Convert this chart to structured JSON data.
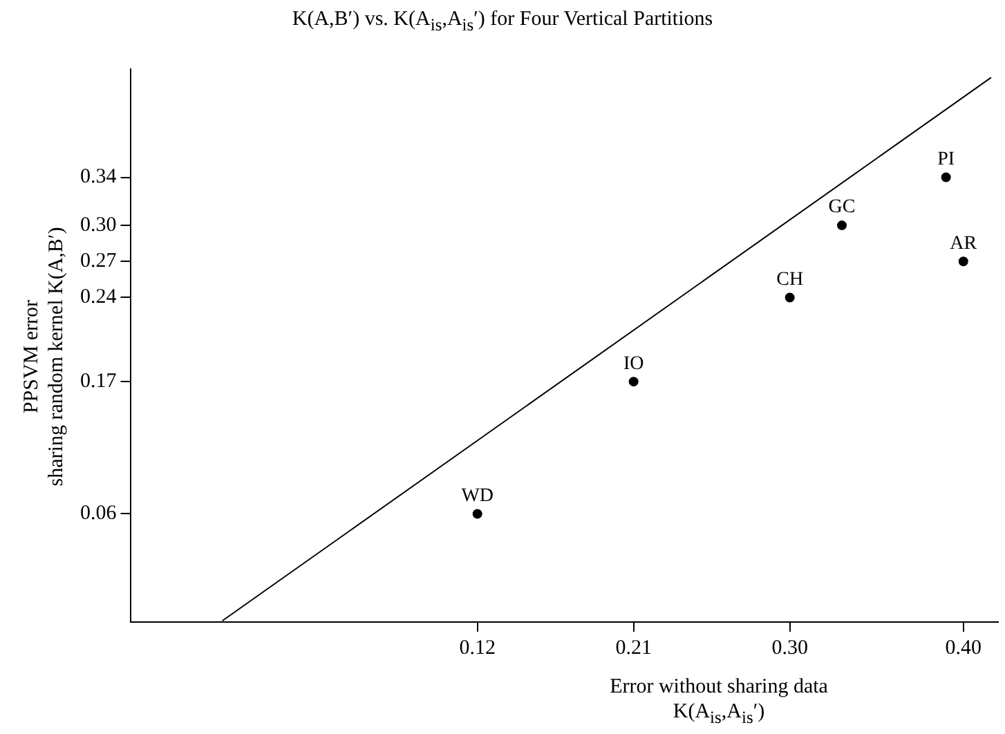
{
  "chart_data": {
    "type": "scatter",
    "title": "K(A,B′) vs. K(A$_{is}$,A$_{is}$′) for Four Vertical Partitions",
    "xlabel": "Error without sharing data\nK(A$_{is}$,A$_{is}$′)",
    "ylabel": "PPSVM error\nsharing random kernel K(A,B′)",
    "series": [
      {
        "color": "#000000",
        "marker": "circle",
        "x": [
          0.12,
          0.21,
          0.3,
          0.33,
          0.39,
          0.4
        ],
        "values": [
          0.06,
          0.17,
          0.24,
          0.3,
          0.34,
          0.27
        ]
      },
      {
        "type": "line",
        "color": "#000000",
        "x": [
          -0.027,
          0.416
        ],
        "values": [
          -0.029,
          0.423
        ]
      }
    ],
    "xlim": [
      -0.08,
      0.42
    ],
    "ylim": [
      -0.03,
      0.43
    ],
    "xticks": [
      0.12,
      0.21,
      {
        "value": 0.3,
        "label": "0.30"
      },
      {
        "value": 0.4,
        "label": "0.40"
      }
    ],
    "yticks": [
      0.06,
      0.17,
      0.24,
      0.27,
      {
        "value": 0.3,
        "label": "0.30"
      },
      0.34
    ],
    "annotations": [
      {
        "text": "WD",
        "x": 0.12,
        "y": 0.06
      },
      {
        "text": "IO",
        "x": 0.21,
        "y": 0.17
      },
      {
        "text": "CH",
        "x": 0.3,
        "y": 0.24
      },
      {
        "text": "GC",
        "x": 0.33,
        "y": 0.3
      },
      {
        "text": "PI",
        "x": 0.39,
        "y": 0.34
      },
      {
        "text": "AR",
        "x": 0.4,
        "y": 0.27
      }
    ],
    "grid": false,
    "legend": false,
    "line_style": "solid"
  }
}
